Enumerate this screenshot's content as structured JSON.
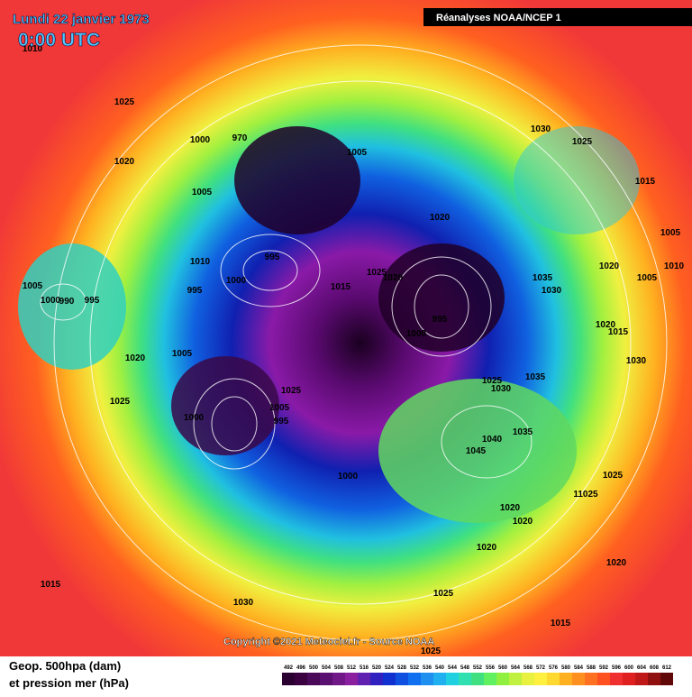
{
  "header": {
    "date": "Lundi 22 janvier 1973",
    "time": "0:00 UTC",
    "source_box": "Réanalyses NOAA/NCEP 1"
  },
  "copyright": "Copyright ©2021 Meteociel.fr - Source NOAA",
  "legend": {
    "line1": "Geop. 500hpa (dam)",
    "line2": "et pression mer (hPa)",
    "scale": [
      492,
      496,
      500,
      504,
      508,
      512,
      516,
      520,
      524,
      528,
      532,
      536,
      540,
      544,
      548,
      552,
      556,
      560,
      564,
      568,
      572,
      576,
      580,
      584,
      588,
      592,
      596,
      600,
      604,
      608,
      612
    ]
  },
  "isobar_labels": [
    "1010",
    "1025",
    "1020",
    "1005",
    "1000",
    "970",
    "1005",
    "1020",
    "995",
    "1010",
    "1000",
    "995",
    "1015",
    "1025",
    "1020",
    "1005",
    "1000",
    "990",
    "995",
    "1020",
    "1005",
    "1025",
    "1000",
    "1025",
    "1005",
    "995",
    "1000",
    "1030",
    "1025",
    "1015",
    "1005",
    "1020",
    "1005",
    "1010",
    "1035",
    "1030",
    "1000",
    "995",
    "1020",
    "1015",
    "1030",
    "1025",
    "1030",
    "1035",
    "1035",
    "1040",
    "1045",
    "1025",
    "11025",
    "1020",
    "1020",
    "1020",
    "1020",
    "1015",
    "1030",
    "1025",
    "1015",
    "1025"
  ]
}
